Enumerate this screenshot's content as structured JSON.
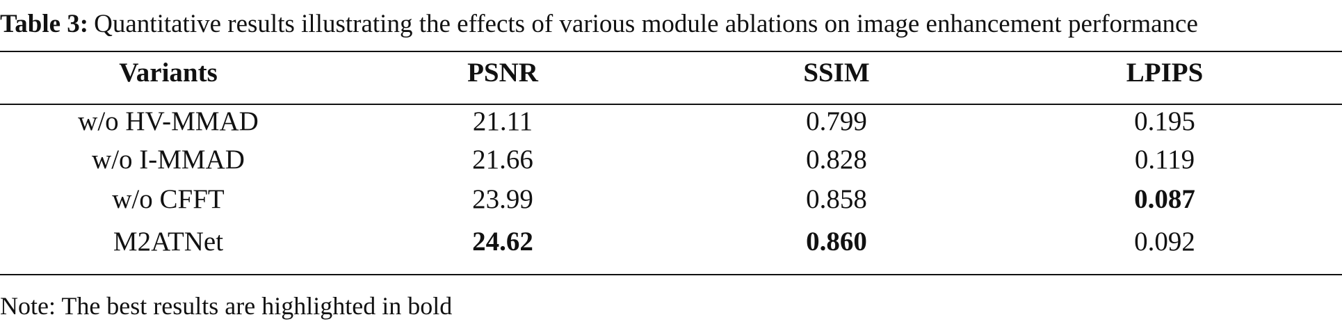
{
  "caption": {
    "label": "Table 3:",
    "text": "Quantitative results illustrating the effects of various module ablations on image enhancement performance"
  },
  "table": {
    "header": [
      "Variants",
      "PSNR",
      "SSIM",
      "LPIPS"
    ],
    "rows": [
      [
        "w/o HV-MMAD",
        "21.11",
        "0.799",
        "0.195"
      ],
      [
        "w/o I-MMAD",
        "21.66",
        "0.828",
        "0.119"
      ],
      [
        "w/o CFFT",
        "23.99",
        "0.858",
        "0.087"
      ],
      [
        "M2ATNet",
        "24.62",
        "0.860",
        "0.092"
      ]
    ],
    "bold_cells": [
      [
        2,
        3
      ],
      [
        3,
        1
      ],
      [
        3,
        2
      ]
    ]
  },
  "note": "Note: The best results are highlighted in bold"
}
